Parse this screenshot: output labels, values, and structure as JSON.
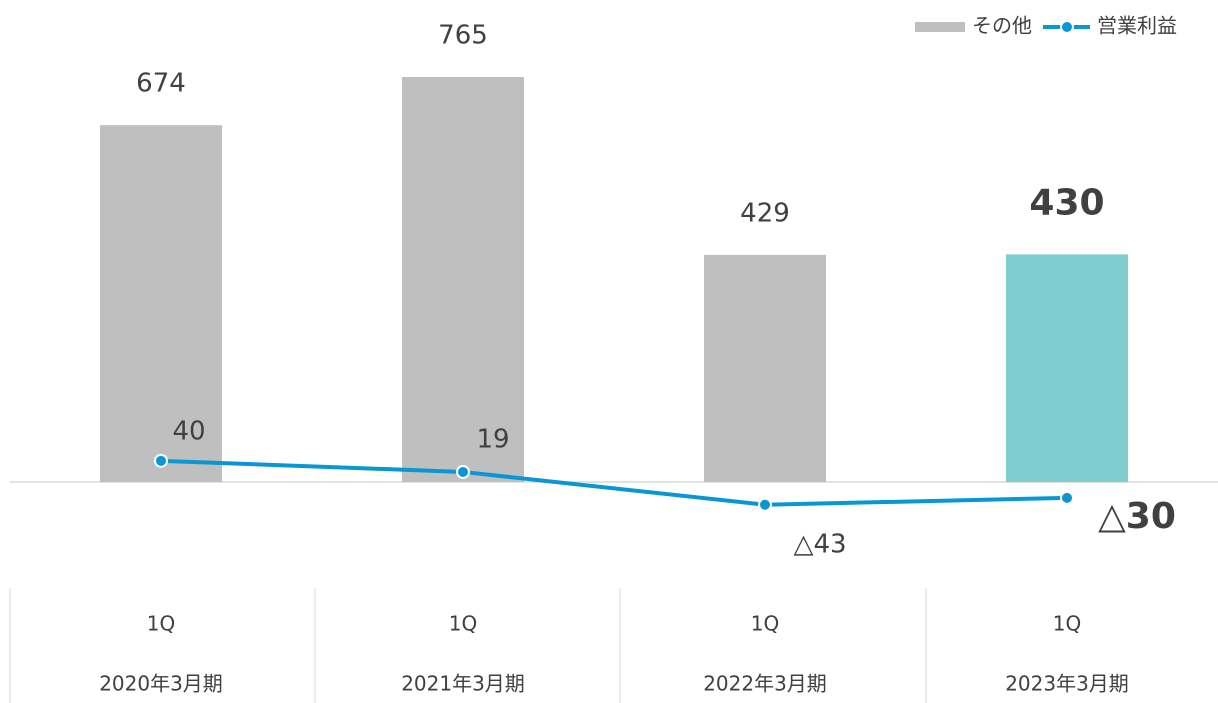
{
  "chart_data": {
    "type": "bar-line",
    "categories": [
      "1Q",
      "1Q",
      "1Q",
      "1Q"
    ],
    "periods": [
      "2020年3月期",
      "2021年3月期",
      "2022年3月期",
      "2023年3月期"
    ],
    "series": [
      {
        "name": "その他",
        "type": "bar",
        "colors": [
          "#bfbfbf",
          "#bfbfbf",
          "#bfbfbf",
          "#80cdd0"
        ],
        "values": [
          674,
          765,
          429,
          430
        ]
      },
      {
        "name": "営業利益",
        "type": "line",
        "color": "#0a96d4",
        "values": [
          40,
          19,
          -43,
          -30
        ],
        "value_labels": [
          "40",
          "19",
          "△43",
          "△30"
        ]
      }
    ]
  }
}
